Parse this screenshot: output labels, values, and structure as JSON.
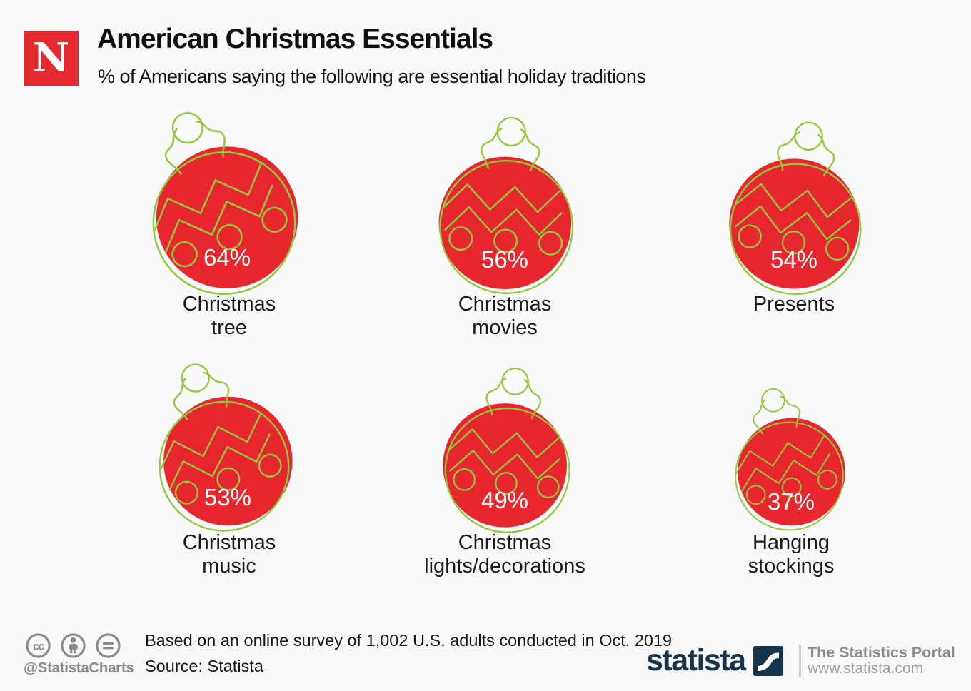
{
  "header": {
    "brand_letter": "N",
    "title": "American Christmas Essentials",
    "subtitle": "% of Americans saying the following are essential holiday traditions"
  },
  "chart_data": {
    "type": "pictogram",
    "title": "American Christmas Essentials",
    "subtitle": "% of Americans saying the following are essential holiday traditions",
    "unit": "%",
    "categories": [
      "Christmas tree",
      "Christmas movies",
      "Presents",
      "Christmas music",
      "Christmas lights/decorations",
      "Hanging stockings"
    ],
    "values": [
      64,
      56,
      54,
      53,
      49,
      37
    ],
    "items": [
      {
        "label": "Christmas tree",
        "lines": [
          "Christmas",
          "tree"
        ],
        "value": 64,
        "value_label": "64%"
      },
      {
        "label": "Christmas movies",
        "lines": [
          "Christmas",
          "movies"
        ],
        "value": 56,
        "value_label": "56%"
      },
      {
        "label": "Presents",
        "lines": [
          "Presents"
        ],
        "value": 54,
        "value_label": "54%"
      },
      {
        "label": "Christmas music",
        "lines": [
          "Christmas",
          "music"
        ],
        "value": 53,
        "value_label": "53%"
      },
      {
        "label": "Christmas lights/decorations",
        "lines": [
          "Christmas",
          "lights/decorations"
        ],
        "value": 49,
        "value_label": "49%"
      },
      {
        "label": "Hanging stockings",
        "lines": [
          "Hanging",
          "stockings"
        ],
        "value": 37,
        "value_label": "37%"
      }
    ],
    "colors": {
      "ornament_fill": "#e8262d",
      "ornament_outline": "#94c840",
      "value_text": "#ffffff",
      "label_text": "#1a1a1a"
    },
    "layout_hint": "3 columns x 2 rows; bauble area proportional to value; grid off; no axes"
  },
  "footer": {
    "license_icons": [
      "cc",
      "attribution-person",
      "equals-nd"
    ],
    "license_handle": "@StatistaCharts",
    "note_line1": "Based on an online survey of 1,002 U.S. adults conducted in Oct. 2019",
    "note_line2": "Source: Statista",
    "brand": "statista",
    "tagline": "The Statistics Portal",
    "website": "www.statista.com"
  },
  "colors": {
    "background": "#f9f9f9",
    "newsweek_red": "#e42a2e",
    "statista_navy": "#16354d",
    "footer_gray": "#8a8a8a"
  }
}
